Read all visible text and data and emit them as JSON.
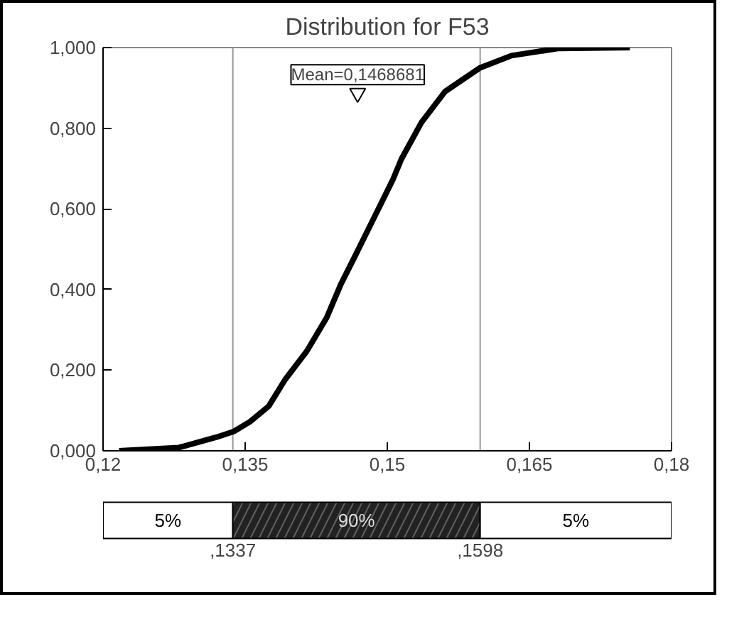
{
  "chart_data": [
    {
      "type": "line",
      "title": "Distribution for F53",
      "x": [
        0.1217,
        0.128,
        0.132,
        0.1338,
        0.1355,
        0.1375,
        0.1392,
        0.1415,
        0.1436,
        0.1451,
        0.1466,
        0.1486,
        0.1506,
        0.1515,
        0.1536,
        0.1561,
        0.1598,
        0.1631,
        0.1681,
        0.1756
      ],
      "series": [
        {
          "color": "#000000",
          "values": [
            0,
            0.008,
            0.034,
            0.048,
            0.072,
            0.111,
            0.176,
            0.247,
            0.33,
            0.413,
            0.483,
            0.578,
            0.673,
            0.724,
            0.814,
            0.891,
            0.95,
            0.98,
            0.998,
            1.0
          ]
        }
      ],
      "xlim": [
        0.12,
        0.18
      ],
      "xticks": [
        {
          "value": 0.12,
          "label": "0,12"
        },
        {
          "value": 0.135,
          "label": "0,135"
        },
        {
          "value": 0.15,
          "label": "0,15"
        },
        {
          "value": 0.165,
          "label": "0,165"
        },
        {
          "value": 0.18,
          "label": "0,18"
        }
      ],
      "ylim": [
        0,
        1
      ],
      "yticks": [
        {
          "value": 0,
          "label": "0,000"
        },
        {
          "value": 0.2,
          "label": "0,200"
        },
        {
          "value": 0.4,
          "label": "0,400"
        },
        {
          "value": 0.6,
          "label": "0,600"
        },
        {
          "value": 0.8,
          "label": "0,800"
        },
        {
          "value": 1,
          "label": "1,000"
        }
      ],
      "grid": false,
      "marker": "none",
      "line_style": "solid",
      "ref_lines": [
        {
          "axis": "x",
          "value": 0.1337,
          "color": "#999999"
        },
        {
          "axis": "x",
          "value": 0.1598,
          "color": "#999999"
        }
      ],
      "annotations": [
        {
          "text": "Mean=0,1468681",
          "x": 0.1468681,
          "y": 0.887
        }
      ]
    },
    {
      "type": "other",
      "annotations": [
        "5%",
        "90%",
        "5%",
        ",1337",
        ",1598"
      ]
    }
  ]
}
